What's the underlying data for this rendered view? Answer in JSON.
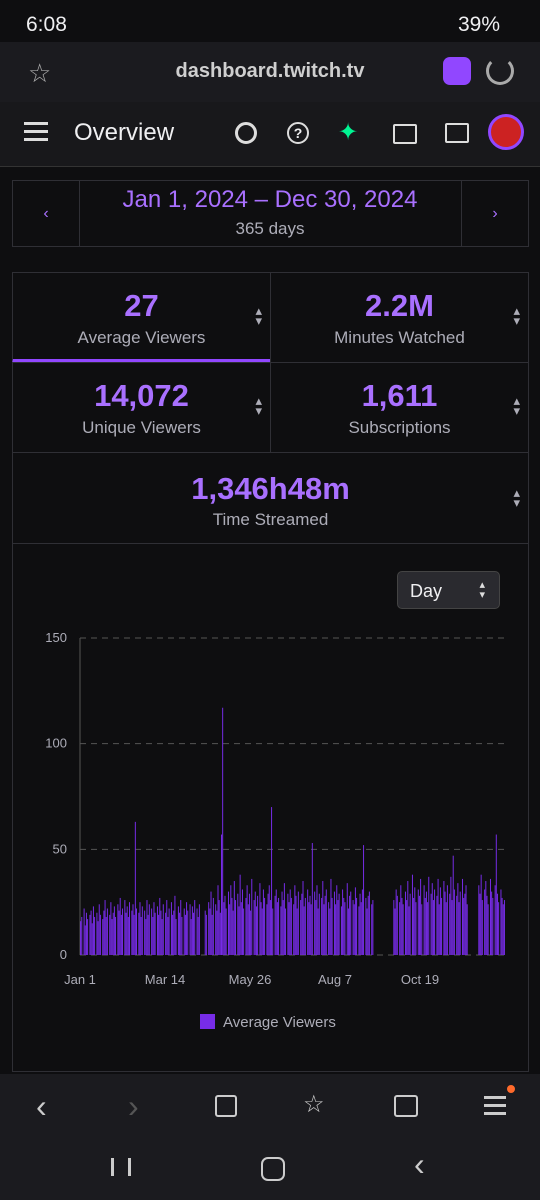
{
  "status": {
    "time": "6:08",
    "battery": "39%"
  },
  "browser": {
    "url": "dashboard.twitch.tv"
  },
  "nav": {
    "title": "Overview"
  },
  "date_range": {
    "label": "Jan 1, 2024 – Dec 30, 2024",
    "days": "365 days"
  },
  "stats": [
    {
      "value": "27",
      "label": "Average Viewers"
    },
    {
      "value": "2.2M",
      "label": "Minutes Watched"
    },
    {
      "value": "14,072",
      "label": "Unique Viewers"
    },
    {
      "value": "1,611",
      "label": "Subscriptions"
    },
    {
      "value": "1,346h48m",
      "label": "Time Streamed"
    }
  ],
  "dropdown": {
    "label": "Day"
  },
  "chart_data": {
    "type": "bar",
    "color": "#772ce8",
    "grid": true,
    "series": [
      {
        "name": "Average Viewers",
        "color": "#772ce8",
        "values": [
          16,
          18,
          0,
          22,
          14,
          20,
          17,
          0,
          19,
          21,
          15,
          23,
          18,
          0,
          20,
          16,
          24,
          19,
          0,
          17,
          21,
          26,
          18,
          22,
          0,
          19,
          25,
          17,
          20,
          23,
          18,
          0,
          24,
          21,
          27,
          19,
          22,
          0,
          26,
          20,
          23,
          18,
          25,
          0,
          21,
          24,
          19,
          63,
          22,
          0,
          20,
          25,
          18,
          23,
          0,
          21,
          17,
          26,
          19,
          24,
          0,
          22,
          18,
          25,
          20,
          0,
          23,
          19,
          27,
          21,
          17,
          24,
          0,
          20,
          26,
          18,
          22,
          0,
          25,
          19,
          21,
          28,
          17,
          0,
          23,
          20,
          26,
          18,
          0,
          22,
          19,
          25,
          21,
          0,
          24,
          17,
          23,
          20,
          26,
          0,
          22,
          18,
          24,
          0,
          0,
          0,
          0,
          21,
          19,
          0,
          25,
          22,
          30,
          19,
          27,
          0,
          24,
          21,
          33,
          26,
          20,
          57,
          117,
          25,
          28,
          22,
          0,
          30,
          24,
          33,
          27,
          21,
          35,
          26,
          0,
          29,
          23,
          38,
          25,
          31,
          22,
          0,
          27,
          33,
          24,
          29,
          21,
          36,
          0,
          26,
          30,
          23,
          28,
          0,
          34,
          25,
          22,
          31,
          27,
          0,
          24,
          29,
          33,
          26,
          70,
          22,
          0,
          28,
          31,
          25,
          27,
          0,
          23,
          30,
          26,
          34,
          22,
          0,
          29,
          25,
          31,
          27,
          0,
          24,
          33,
          28,
          22,
          30,
          0,
          26,
          29,
          35,
          23,
          27,
          0,
          31,
          25,
          28,
          24,
          53,
          0,
          30,
          26,
          33,
          22,
          29,
          0,
          27,
          35,
          24,
          28,
          31,
          0,
          25,
          22,
          36,
          27,
          0,
          30,
          24,
          33,
          26,
          29,
          0,
          23,
          31,
          27,
          25,
          0,
          34,
          22,
          28,
          30,
          0,
          26,
          24,
          32,
          27,
          0,
          23,
          29,
          25,
          31,
          52,
          0,
          27,
          22,
          28,
          30,
          0,
          24,
          26,
          0,
          0,
          0,
          0,
          0,
          0,
          0,
          0,
          0,
          0,
          0,
          0,
          0,
          0,
          0,
          0,
          0,
          26,
          22,
          31,
          28,
          0,
          25,
          33,
          27,
          24,
          0,
          30,
          26,
          35,
          23,
          29,
          0,
          38,
          27,
          32,
          25,
          0,
          31,
          28,
          36,
          24,
          0,
          33,
          27,
          30,
          25,
          37,
          0,
          29,
          34,
          26,
          31,
          0,
          28,
          36,
          24,
          32,
          27,
          0,
          35,
          30,
          25,
          33,
          0,
          29,
          37,
          26,
          47,
          31,
          0,
          28,
          34,
          25,
          30,
          0,
          36,
          27,
          29,
          33,
          24,
          0,
          0,
          0,
          0,
          0,
          0,
          0,
          0,
          0,
          33,
          29,
          38,
          26,
          0,
          31,
          35,
          28,
          24,
          0,
          36,
          30,
          27,
          0,
          33,
          57,
          29,
          25,
          0,
          31,
          27,
          24,
          26
        ]
      }
    ],
    "xlim": [
      0,
      365
    ],
    "xticks": [
      {
        "value": 0,
        "label": "Jan 1"
      },
      {
        "value": 73,
        "label": "Mar 14"
      },
      {
        "value": 146,
        "label": "May 26"
      },
      {
        "value": 219,
        "label": "Aug 7"
      },
      {
        "value": 292,
        "label": "Oct 19"
      }
    ],
    "ylim": [
      0,
      150
    ],
    "yticks": [
      0,
      50,
      100,
      150
    ]
  }
}
